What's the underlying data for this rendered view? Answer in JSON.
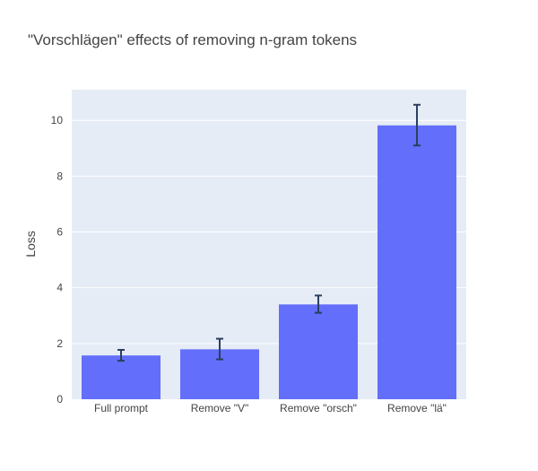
{
  "chart_data": {
    "type": "bar",
    "title": "\"Vorschlägen\" effects of removing n-gram tokens",
    "xlabel": "",
    "ylabel": "Loss",
    "categories": [
      "Full prompt",
      "Remove \"V\"",
      "Remove \"orsch\"",
      "Remove \"lä\""
    ],
    "values": [
      1.57,
      1.79,
      3.4,
      9.82
    ],
    "error_low": [
      1.38,
      1.43,
      3.1,
      9.1
    ],
    "error_high": [
      1.77,
      2.17,
      3.72,
      10.56
    ],
    "ylim": [
      0,
      11.1
    ],
    "yticks": [
      0,
      2,
      4,
      6,
      8,
      10
    ],
    "grid": true,
    "colors": {
      "bar": "#636efa",
      "error_bar": "#2a3f5f",
      "plot_bg": "#e5ecf6",
      "grid": "#ffffff"
    }
  }
}
